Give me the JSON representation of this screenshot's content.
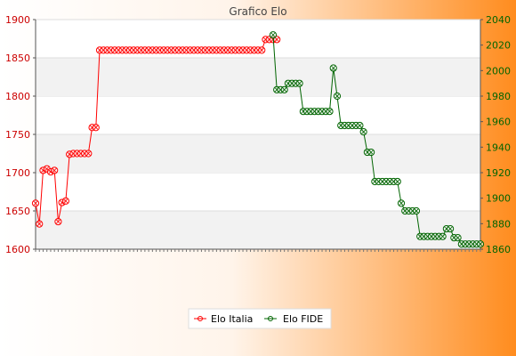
{
  "chart_data": {
    "type": "line",
    "title": "Grafico Elo",
    "xlabel": "",
    "ylabel": "",
    "y_left": {
      "range": [
        1600,
        1900
      ],
      "ticks": [
        1600,
        1650,
        1700,
        1750,
        1800,
        1850,
        1900
      ]
    },
    "y_right": {
      "range": [
        1860,
        2040
      ],
      "ticks": [
        1860,
        1880,
        1900,
        1920,
        1940,
        1960,
        1980,
        2000,
        2020,
        2040
      ]
    },
    "grid": "horizontal bands",
    "legend_position": "bottom-center",
    "x_tick_count": 119,
    "series": [
      {
        "name": "Elo Italia",
        "axis": "left",
        "color": "#ff0000",
        "points": [
          [
            0,
            1660
          ],
          [
            1,
            1633
          ],
          [
            2,
            1703
          ],
          [
            3,
            1705
          ],
          [
            4,
            1701
          ],
          [
            5,
            1703
          ],
          [
            6,
            1636
          ],
          [
            7,
            1661
          ],
          [
            8,
            1663
          ],
          [
            9,
            1724
          ],
          [
            10,
            1725
          ],
          [
            11,
            1725
          ],
          [
            12,
            1725
          ],
          [
            13,
            1725
          ],
          [
            14,
            1725
          ],
          [
            15,
            1759
          ],
          [
            16,
            1759
          ],
          [
            17,
            1860
          ],
          [
            18,
            1860
          ],
          [
            19,
            1860
          ],
          [
            20,
            1860
          ],
          [
            21,
            1860
          ],
          [
            22,
            1860
          ],
          [
            23,
            1860
          ],
          [
            24,
            1860
          ],
          [
            25,
            1860
          ],
          [
            26,
            1860
          ],
          [
            27,
            1860
          ],
          [
            28,
            1860
          ],
          [
            29,
            1860
          ],
          [
            30,
            1860
          ],
          [
            31,
            1860
          ],
          [
            32,
            1860
          ],
          [
            33,
            1860
          ],
          [
            34,
            1860
          ],
          [
            35,
            1860
          ],
          [
            36,
            1860
          ],
          [
            37,
            1860
          ],
          [
            38,
            1860
          ],
          [
            39,
            1860
          ],
          [
            40,
            1860
          ],
          [
            41,
            1860
          ],
          [
            42,
            1860
          ],
          [
            43,
            1860
          ],
          [
            44,
            1860
          ],
          [
            45,
            1860
          ],
          [
            46,
            1860
          ],
          [
            47,
            1860
          ],
          [
            48,
            1860
          ],
          [
            49,
            1860
          ],
          [
            50,
            1860
          ],
          [
            51,
            1860
          ],
          [
            52,
            1860
          ],
          [
            53,
            1860
          ],
          [
            54,
            1860
          ],
          [
            55,
            1860
          ],
          [
            56,
            1860
          ],
          [
            57,
            1860
          ],
          [
            58,
            1860
          ],
          [
            59,
            1860
          ],
          [
            60,
            1860
          ],
          [
            61,
            1874
          ],
          [
            62,
            1874
          ],
          [
            63,
            1874
          ],
          [
            64,
            1874
          ]
        ]
      },
      {
        "name": "Elo FIDE",
        "axis": "right",
        "color": "#006400",
        "points": [
          [
            63,
            2028
          ],
          [
            64,
            1985
          ],
          [
            65,
            1985
          ],
          [
            66,
            1985
          ],
          [
            67,
            1990
          ],
          [
            68,
            1990
          ],
          [
            69,
            1990
          ],
          [
            70,
            1990
          ],
          [
            71,
            1968
          ],
          [
            72,
            1968
          ],
          [
            73,
            1968
          ],
          [
            74,
            1968
          ],
          [
            75,
            1968
          ],
          [
            76,
            1968
          ],
          [
            77,
            1968
          ],
          [
            78,
            1968
          ],
          [
            79,
            2002
          ],
          [
            80,
            1980
          ],
          [
            81,
            1957
          ],
          [
            82,
            1957
          ],
          [
            83,
            1957
          ],
          [
            84,
            1957
          ],
          [
            85,
            1957
          ],
          [
            86,
            1957
          ],
          [
            87,
            1952
          ],
          [
            88,
            1936
          ],
          [
            89,
            1936
          ],
          [
            90,
            1913
          ],
          [
            91,
            1913
          ],
          [
            92,
            1913
          ],
          [
            93,
            1913
          ],
          [
            94,
            1913
          ],
          [
            95,
            1913
          ],
          [
            96,
            1913
          ],
          [
            97,
            1896
          ],
          [
            98,
            1890
          ],
          [
            99,
            1890
          ],
          [
            100,
            1890
          ],
          [
            101,
            1890
          ],
          [
            102,
            1870
          ],
          [
            103,
            1870
          ],
          [
            104,
            1870
          ],
          [
            105,
            1870
          ],
          [
            106,
            1870
          ],
          [
            107,
            1870
          ],
          [
            108,
            1870
          ],
          [
            109,
            1876
          ],
          [
            110,
            1876
          ],
          [
            111,
            1869
          ],
          [
            112,
            1869
          ],
          [
            113,
            1864
          ],
          [
            114,
            1864
          ],
          [
            115,
            1864
          ],
          [
            116,
            1864
          ],
          [
            117,
            1864
          ],
          [
            118,
            1864
          ]
        ]
      }
    ]
  }
}
